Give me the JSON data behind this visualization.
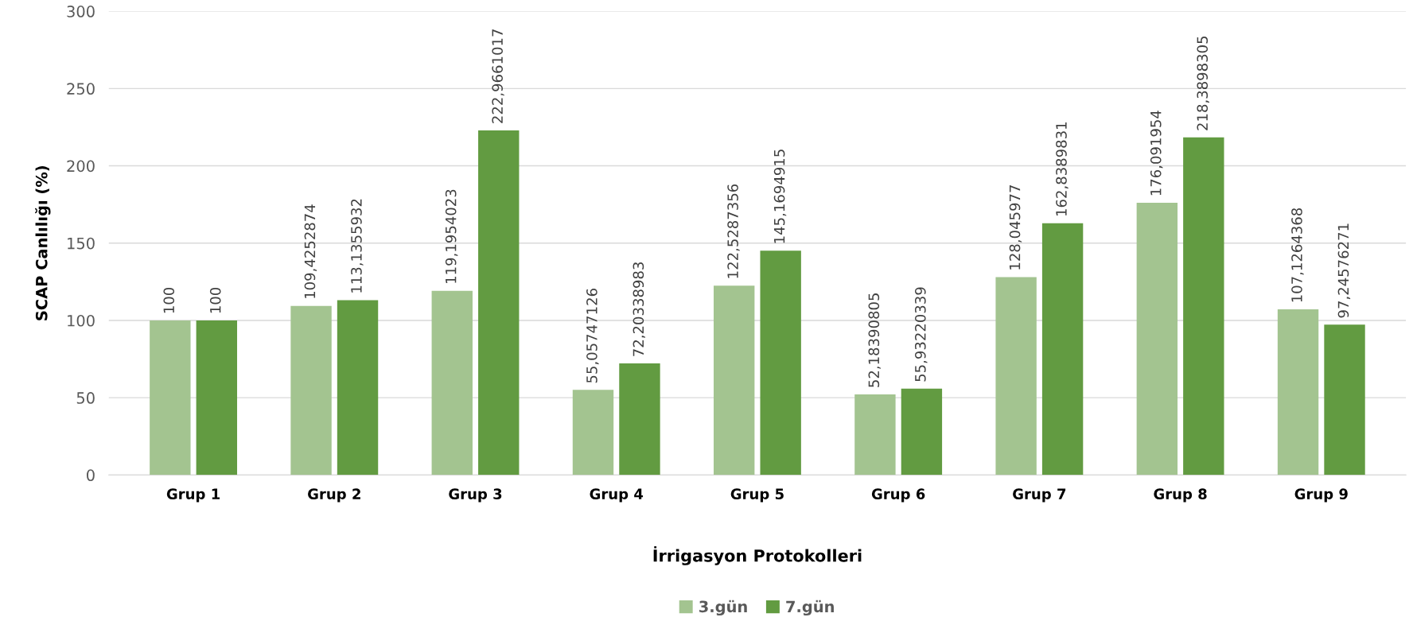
{
  "chart_data": {
    "type": "bar",
    "xlabel": "İrrigasyon Protokolleri",
    "ylabel": "SCAP Canlılığı (%)",
    "categories": [
      "Grup 1",
      "Grup 2",
      "Grup 3",
      "Grup 4",
      "Grup 5",
      "Grup 6",
      "Grup 7",
      "Grup 8",
      "Grup 9"
    ],
    "series": [
      {
        "name": "3.gün",
        "color": "#a3c490",
        "values": [
          100,
          109.4252874,
          119.1954023,
          55.05747126,
          122.5287356,
          52.18390805,
          128.045977,
          176.091954,
          107.1264368
        ],
        "value_labels": [
          "100",
          "109,4252874",
          "119,1954023",
          "55,05747126",
          "122,5287356",
          "52,18390805",
          "128,045977",
          "176,091954",
          "107,1264368"
        ]
      },
      {
        "name": "7.gün",
        "color": "#629b41",
        "values": [
          100,
          113.1355932,
          222.9661017,
          72.20338983,
          145.1694915,
          55.93220339,
          162.8389831,
          218.3898305,
          97.24576271
        ],
        "value_labels": [
          "100",
          "113,1355932",
          "222,9661017",
          "72,20338983",
          "145,1694915",
          "55,93220339",
          "162,8389831",
          "218,3898305",
          "97,24576271"
        ]
      }
    ],
    "ylim": [
      0,
      300
    ],
    "yticks": [
      0,
      50,
      100,
      150,
      200,
      250,
      300
    ],
    "grid": "y",
    "legend": "bottom"
  }
}
